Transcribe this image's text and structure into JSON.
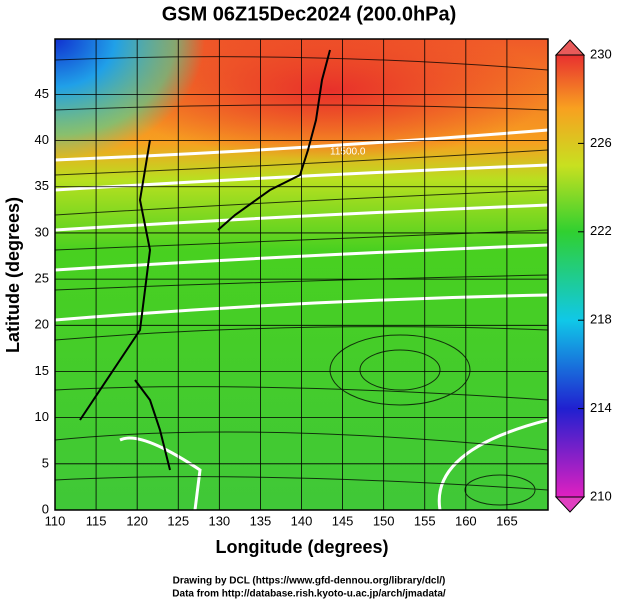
{
  "title": "GSM 06Z15Dec2024 (200.0hPa)",
  "x_axis": {
    "label": "Longitude (degrees)",
    "lim": [
      110,
      170
    ],
    "ticks": [
      110,
      115,
      120,
      125,
      130,
      135,
      140,
      145,
      150,
      155,
      160,
      165
    ]
  },
  "y_axis": {
    "label": "Latitude  (degrees)",
    "lim": [
      0,
      51
    ],
    "ticks": [
      0,
      5,
      10,
      15,
      20,
      25,
      30,
      35,
      40,
      45
    ]
  },
  "colorbar": {
    "lim": [
      210,
      230
    ],
    "ticks": [
      210,
      214,
      218,
      222,
      226,
      230
    ]
  },
  "contour_label": "11500.0",
  "footer": [
    "Drawing by DCL (https://www.gfd-dennou.org/library/dcl/)",
    "Data from http://database.rish.kyoto-u.ac.jp/arch/jmadata/"
  ]
}
